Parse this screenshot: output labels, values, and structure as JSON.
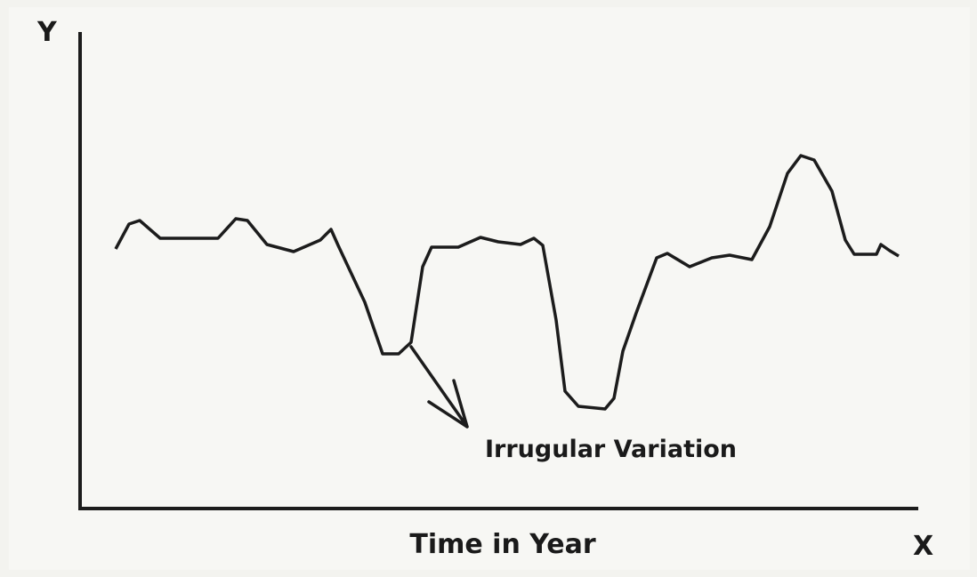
{
  "axes": {
    "y_label": "Y",
    "x_label": "X",
    "caption": "Time in Year"
  },
  "annotation": "Irrugular Variation"
}
